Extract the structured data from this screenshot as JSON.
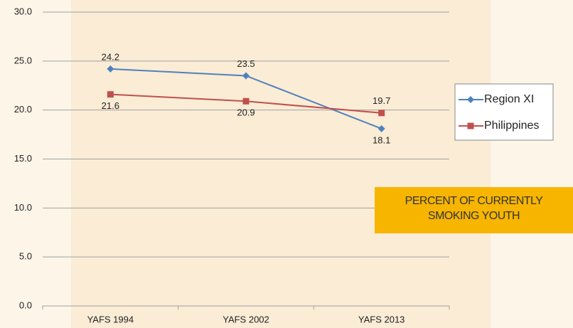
{
  "chart_data": {
    "type": "line",
    "categories": [
      "YAFS 1994",
      "YAFS 2002",
      "YAFS 2013"
    ],
    "series": [
      {
        "name": "Region XI",
        "color": "#4f81bd",
        "marker": "diamond",
        "values": [
          24.2,
          23.5,
          18.1
        ]
      },
      {
        "name": "Philippines",
        "color": "#c0504d",
        "marker": "square",
        "values": [
          21.6,
          20.9,
          19.7
        ]
      }
    ],
    "ylim": [
      0,
      30
    ],
    "yticks": [
      {
        "value": 0,
        "label": "0.0"
      },
      {
        "value": 5,
        "label": "5.0"
      },
      {
        "value": 10,
        "label": "10.0"
      },
      {
        "value": 15,
        "label": "15.0"
      },
      {
        "value": 20,
        "label": "20.0"
      },
      {
        "value": 25,
        "label": "25.0"
      },
      {
        "value": 30,
        "label": "30.0"
      }
    ],
    "grid": true,
    "legend": "right",
    "annotation": "PERCENT OF CURRENTLY SMOKING YOUTH"
  }
}
